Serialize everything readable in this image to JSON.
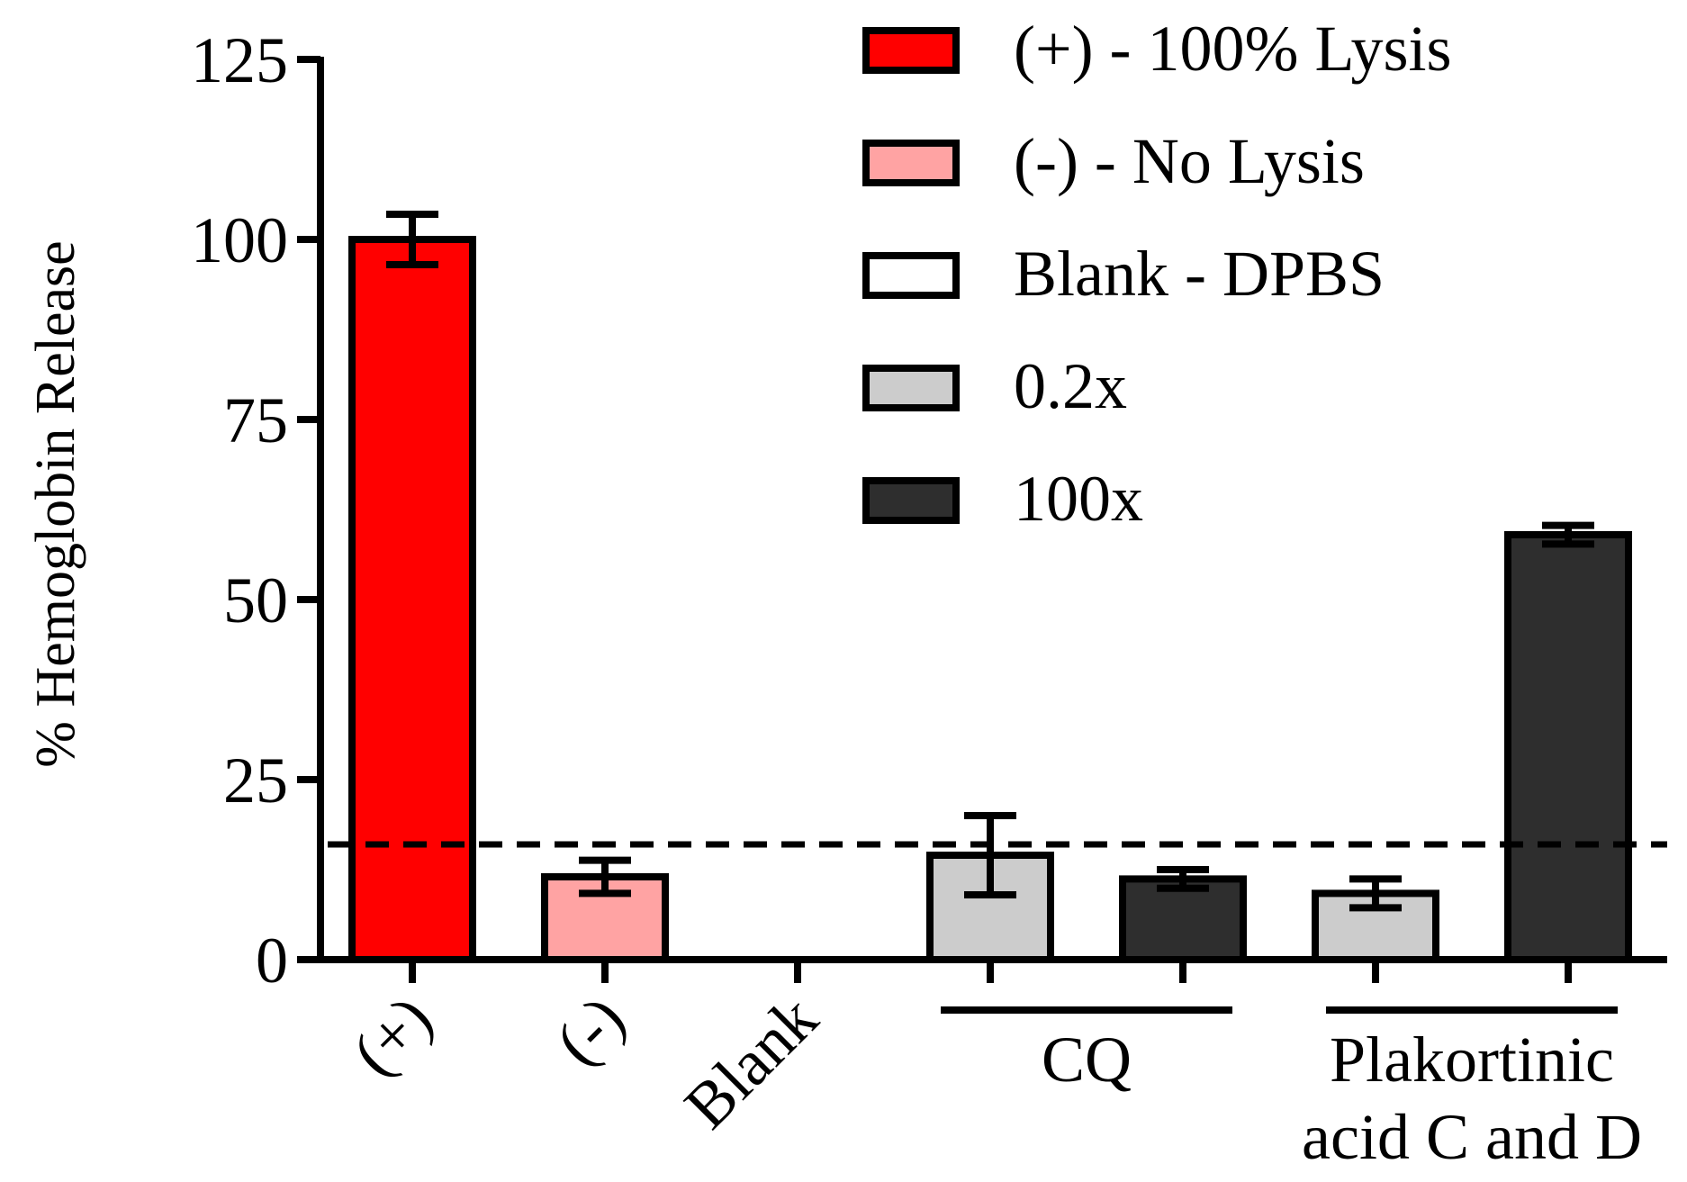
{
  "chart_data": {
    "type": "bar",
    "title": "",
    "xlabel": "",
    "ylabel": "% Hemoglobin Release",
    "ylim": [
      0,
      125
    ],
    "yticks": [
      0,
      25,
      50,
      75,
      100,
      125
    ],
    "grid": false,
    "legend_position": "top-right",
    "threshold_line": {
      "value": 16,
      "style": "dashed"
    },
    "legend": [
      {
        "key": "positive",
        "label": "(+) - 100% Lysis",
        "color": "#ff0000"
      },
      {
        "key": "negative",
        "label": "(-) - No Lysis",
        "color": "#ffa3a3"
      },
      {
        "key": "blank",
        "label": "Blank - DPBS",
        "color": "#ffffff"
      },
      {
        "key": "low",
        "label": "0.2x",
        "color": "#cccccc"
      },
      {
        "key": "high",
        "label": "100x",
        "color": "#2e2e2e"
      }
    ],
    "categories": [
      "(+)",
      "(-)",
      "Blank",
      "",
      "",
      "",
      ""
    ],
    "bars": [
      {
        "category": "(+)",
        "series": "positive",
        "value": 100,
        "error": 3.5
      },
      {
        "category": "(-)",
        "series": "negative",
        "value": 11.5,
        "error": 2.3
      },
      {
        "category": "Blank",
        "series": "blank",
        "value": 0,
        "error": 0
      },
      {
        "category": "CQ 0.2x",
        "series": "low",
        "value": 14.5,
        "error": 5.5
      },
      {
        "category": "CQ 100x",
        "series": "high",
        "value": 11.2,
        "error": 1.3
      },
      {
        "category": "Plakortinic 0.2x",
        "series": "low",
        "value": 9.2,
        "error": 2.0
      },
      {
        "category": "Plakortinic 100x",
        "series": "high",
        "value": 59,
        "error": 1.3
      }
    ],
    "groups": [
      {
        "label_lines": [
          "CQ"
        ],
        "bar_indices": [
          3,
          4
        ]
      },
      {
        "label_lines": [
          "Plakortinic",
          "acid C and D"
        ],
        "bar_indices": [
          5,
          6
        ]
      }
    ]
  }
}
